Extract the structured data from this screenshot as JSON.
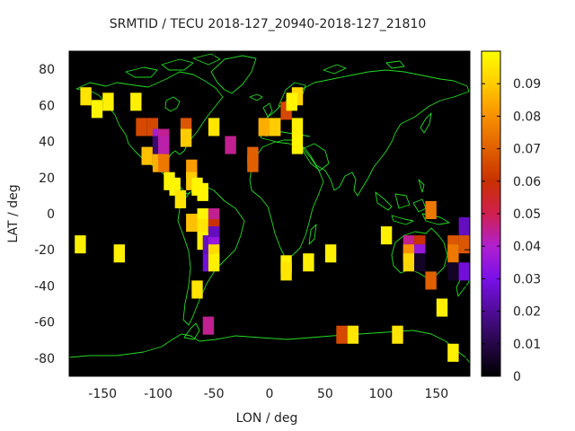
{
  "chart_data": {
    "type": "heatmap",
    "title": "SRMTID / TECU 2018-127_20940-2018-127_21810",
    "xlabel": "LON / deg",
    "ylabel": "LAT / deg",
    "xlim": [
      -180,
      180
    ],
    "ylim": [
      -90,
      90
    ],
    "x_ticks": [
      -150,
      -100,
      -50,
      0,
      50,
      100,
      150
    ],
    "y_ticks": [
      -80,
      -60,
      -40,
      -20,
      0,
      20,
      40,
      60,
      80
    ],
    "colorbar": {
      "min": 0,
      "max": 0.1,
      "ticks": [
        0,
        0.01,
        0.02,
        0.03,
        0.04,
        0.05,
        0.06,
        0.07,
        0.08,
        0.09
      ],
      "palette": "black-purple-red-orange-yellow"
    },
    "cell_size_deg": 10,
    "background_color": "#000000",
    "coastline_color": "#22dd22",
    "cells": [
      {
        "lon": -165,
        "lat": 65,
        "value": 0.095
      },
      {
        "lon": -155,
        "lat": 58,
        "value": 0.098
      },
      {
        "lon": -145,
        "lat": 62,
        "value": 0.097
      },
      {
        "lon": -120,
        "lat": 62,
        "value": 0.097
      },
      {
        "lon": -115,
        "lat": 48,
        "value": 0.065
      },
      {
        "lon": -105,
        "lat": 48,
        "value": 0.065
      },
      {
        "lon": -110,
        "lat": 32,
        "value": 0.088
      },
      {
        "lon": -100,
        "lat": 42,
        "value": 0.038
      },
      {
        "lon": -100,
        "lat": 38,
        "value": 0.015
      },
      {
        "lon": -95,
        "lat": 42,
        "value": 0.045
      },
      {
        "lon": -95,
        "lat": 38,
        "value": 0.043
      },
      {
        "lon": -100,
        "lat": 28,
        "value": 0.085
      },
      {
        "lon": -95,
        "lat": 28,
        "value": 0.075
      },
      {
        "lon": -90,
        "lat": 18,
        "value": 0.098
      },
      {
        "lon": -85,
        "lat": 15,
        "value": 0.098
      },
      {
        "lon": -80,
        "lat": 8,
        "value": 0.095
      },
      {
        "lon": -75,
        "lat": 48,
        "value": 0.068
      },
      {
        "lon": -75,
        "lat": 42,
        "value": 0.09
      },
      {
        "lon": -70,
        "lat": 25,
        "value": 0.082
      },
      {
        "lon": -70,
        "lat": 18,
        "value": 0.09
      },
      {
        "lon": -65,
        "lat": 15,
        "value": 0.098
      },
      {
        "lon": -60,
        "lat": 12,
        "value": 0.098
      },
      {
        "lon": -50,
        "lat": 48,
        "value": 0.095
      },
      {
        "lon": -35,
        "lat": 38,
        "value": 0.045
      },
      {
        "lon": -70,
        "lat": -5,
        "value": 0.088
      },
      {
        "lon": -60,
        "lat": -2,
        "value": 0.098
      },
      {
        "lon": -60,
        "lat": -8,
        "value": 0.095
      },
      {
        "lon": -60,
        "lat": -15,
        "value": 0.097
      },
      {
        "lon": -50,
        "lat": -2,
        "value": 0.045
      },
      {
        "lon": -50,
        "lat": -8,
        "value": 0.06
      },
      {
        "lon": -50,
        "lat": -12,
        "value": 0.025
      },
      {
        "lon": -55,
        "lat": -17,
        "value": 0.025
      },
      {
        "lon": -50,
        "lat": -18,
        "value": 0.035
      },
      {
        "lon": -50,
        "lat": -22,
        "value": 0.093
      },
      {
        "lon": -55,
        "lat": -27,
        "value": 0.028
      },
      {
        "lon": -50,
        "lat": -27,
        "value": 0.097
      },
      {
        "lon": -65,
        "lat": -42,
        "value": 0.095
      },
      {
        "lon": -55,
        "lat": -62,
        "value": 0.045
      },
      {
        "lon": -170,
        "lat": -17,
        "value": 0.097
      },
      {
        "lon": -135,
        "lat": -22,
        "value": 0.097
      },
      {
        "lon": -15,
        "lat": 32,
        "value": 0.07
      },
      {
        "lon": -15,
        "lat": 28,
        "value": 0.07
      },
      {
        "lon": -5,
        "lat": 48,
        "value": 0.085
      },
      {
        "lon": 5,
        "lat": 48,
        "value": 0.09
      },
      {
        "lon": 15,
        "lat": 57,
        "value": 0.065
      },
      {
        "lon": 25,
        "lat": 65,
        "value": 0.092
      },
      {
        "lon": 20,
        "lat": 62,
        "value": 0.098
      },
      {
        "lon": 25,
        "lat": 48,
        "value": 0.097
      },
      {
        "lon": 25,
        "lat": 38,
        "value": 0.098
      },
      {
        "lon": 15,
        "lat": -28,
        "value": 0.097
      },
      {
        "lon": 15,
        "lat": -32,
        "value": 0.095
      },
      {
        "lon": 35,
        "lat": -27,
        "value": 0.097
      },
      {
        "lon": 55,
        "lat": -22,
        "value": 0.097
      },
      {
        "lon": 65,
        "lat": -67,
        "value": 0.065
      },
      {
        "lon": 75,
        "lat": -67,
        "value": 0.095
      },
      {
        "lon": 115,
        "lat": -67,
        "value": 0.095
      },
      {
        "lon": 105,
        "lat": -12,
        "value": 0.097
      },
      {
        "lon": 125,
        "lat": -17,
        "value": 0.045
      },
      {
        "lon": 125,
        "lat": -22,
        "value": 0.08
      },
      {
        "lon": 125,
        "lat": -27,
        "value": 0.092
      },
      {
        "lon": 135,
        "lat": -17,
        "value": 0.06
      },
      {
        "lon": 135,
        "lat": -22,
        "value": 0.035
      },
      {
        "lon": 135,
        "lat": -27,
        "value": 0.005
      },
      {
        "lon": 145,
        "lat": 2,
        "value": 0.075
      },
      {
        "lon": 145,
        "lat": -37,
        "value": 0.07
      },
      {
        "lon": 155,
        "lat": -52,
        "value": 0.097
      },
      {
        "lon": 165,
        "lat": -17,
        "value": 0.068
      },
      {
        "lon": 165,
        "lat": -22,
        "value": 0.075
      },
      {
        "lon": 165,
        "lat": -32,
        "value": 0.005
      },
      {
        "lon": 175,
        "lat": -7,
        "value": 0.025
      },
      {
        "lon": 175,
        "lat": -17,
        "value": 0.068
      },
      {
        "lon": 175,
        "lat": -32,
        "value": 0.028
      },
      {
        "lon": 165,
        "lat": -77,
        "value": 0.097
      }
    ]
  }
}
